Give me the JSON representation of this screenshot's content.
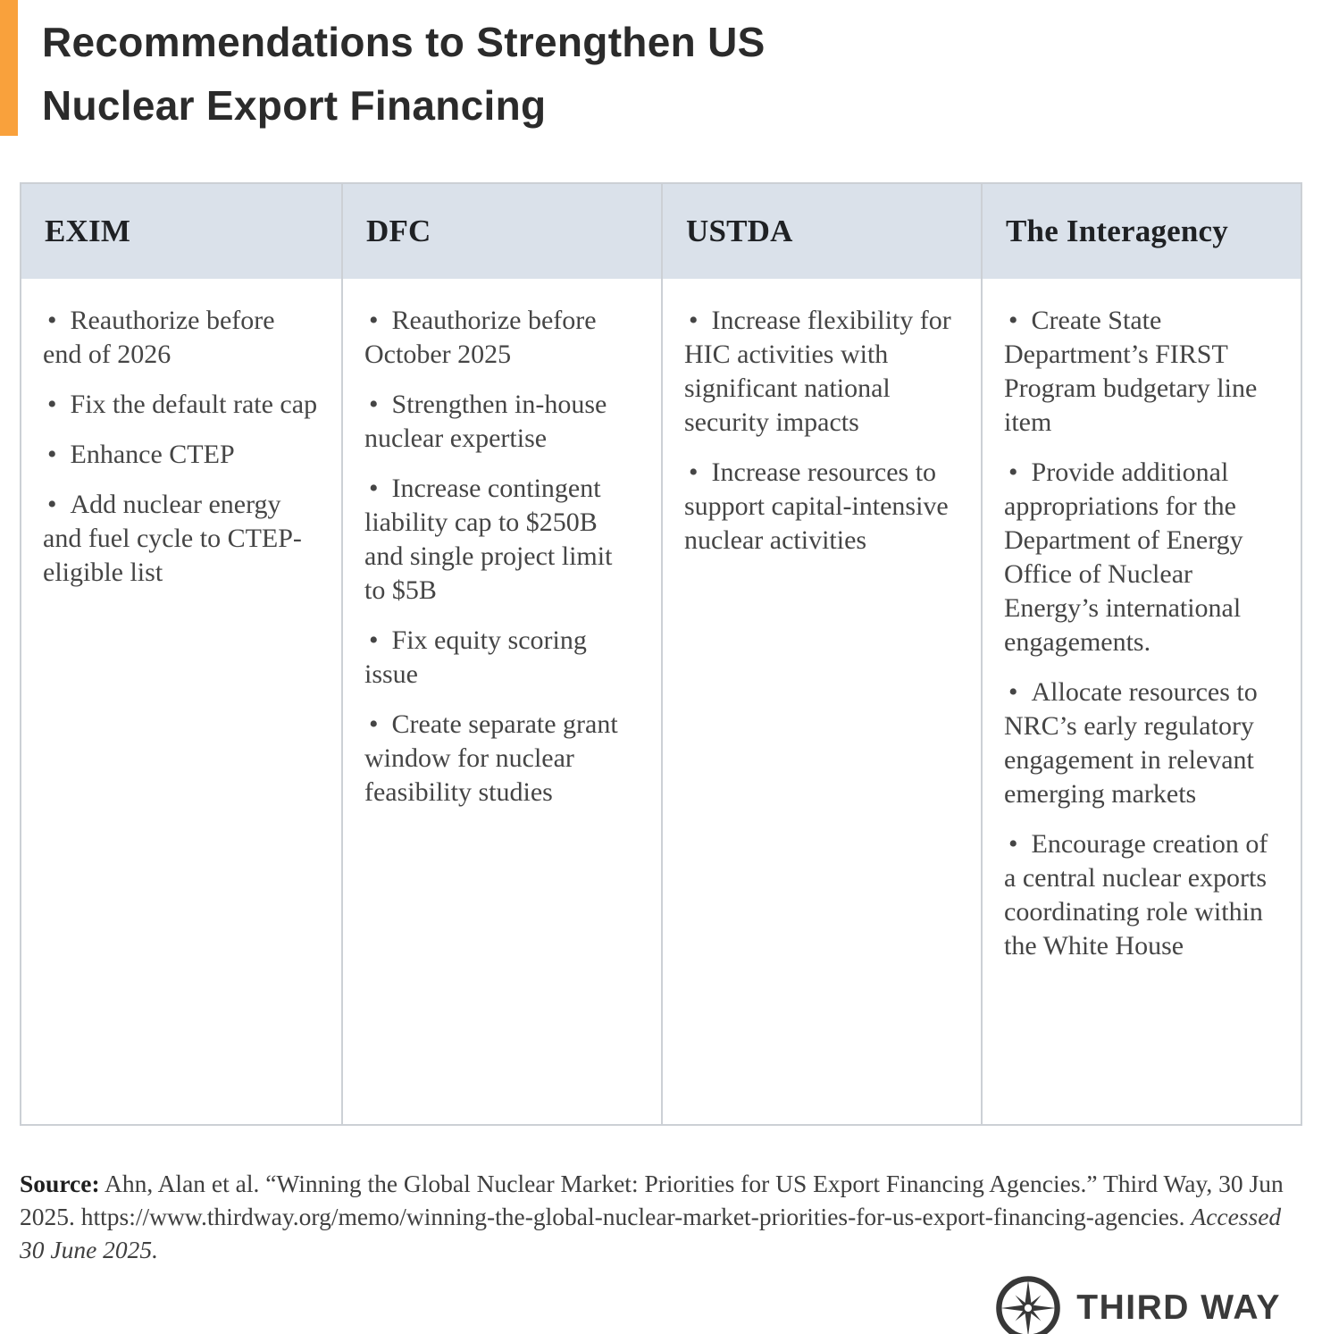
{
  "title": {
    "line1": "Recommendations to Strengthen US",
    "line2": "Nuclear Export Financing"
  },
  "table": {
    "columns": [
      {
        "header": "EXIM",
        "bullets": [
          "Reauthorize before end of 2026",
          "Fix the default rate cap",
          "Enhance CTEP",
          "Add nuclear energy and fuel cycle to CTEP-eligible list"
        ]
      },
      {
        "header": "DFC",
        "bullets": [
          "Reauthorize before October 2025",
          "Strengthen in-house nuclear expertise",
          "Increase contingent liability cap to $250B and single project limit to $5B",
          "Fix equity scoring issue",
          "Create separate grant window for nuclear feasibility studies"
        ]
      },
      {
        "header": "USTDA",
        "bullets": [
          "Increase flexibility for HIC activities with significant national security impacts",
          "Increase resources to support capital-intensive nuclear activities"
        ]
      },
      {
        "header": "The Interagency",
        "bullets": [
          "Create State Department’s FIRST Program budgetary line item",
          "Provide additional appropriations for the Department of Energy Office of Nuclear Energy’s international engagements.",
          "Allocate resources to NRC’s early regulatory engagement in relevant emerging markets",
          "Encourage creation of a central nuclear exports coordinating role within the White House"
        ]
      }
    ]
  },
  "source": {
    "label": "Source:",
    "text": "Ahn, Alan et al. “Winning the Global Nuclear Market: Priorities for US Export Financing Agencies.” Third Way, 30 Jun 2025. https://www.thirdway.org/memo/winning-the-global-nuclear-market-priorities-for-us-export-financing-agencies.",
    "accessed": "Accessed 30 June 2025."
  },
  "logo": {
    "text": "THIRD WAY",
    "icon": "compass-icon"
  },
  "colors": {
    "accent_orange": "#F9A13C",
    "header_background": "#DAE1EA",
    "table_border": "#CCD0D5",
    "title_text": "#2B2B2B",
    "body_text": "#454545",
    "logo_color": "#3A3A3A"
  }
}
